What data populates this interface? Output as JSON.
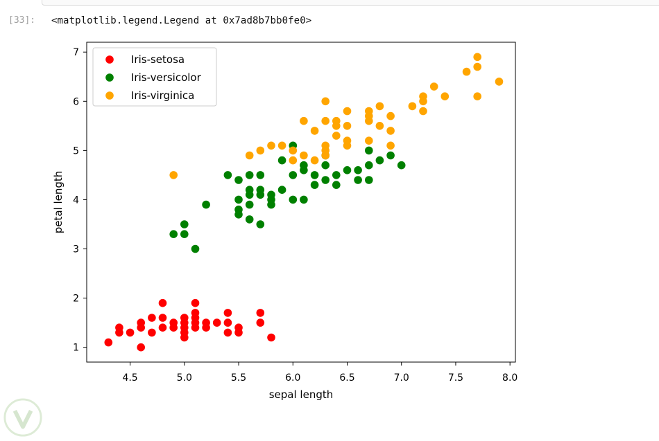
{
  "cell": {
    "prompt": "[33]:",
    "output": "<matplotlib.legend.Legend at 0x7ad8b7bb0fe0>"
  },
  "chart_data": {
    "type": "scatter",
    "xlabel": "sepal length",
    "ylabel": "petal length",
    "xlim": [
      4.1,
      8.05
    ],
    "ylim": [
      0.7,
      7.2
    ],
    "xticks": [
      "4.5",
      "5.0",
      "5.5",
      "6.0",
      "6.5",
      "7.0",
      "7.5",
      "8.0"
    ],
    "yticks": [
      "1",
      "2",
      "3",
      "4",
      "5",
      "6",
      "7"
    ],
    "legend_position": "top-left",
    "series": [
      {
        "name": "Iris-setosa",
        "color": "#ff0000",
        "points": [
          [
            4.3,
            1.1
          ],
          [
            4.4,
            1.3
          ],
          [
            4.4,
            1.4
          ],
          [
            4.5,
            1.3
          ],
          [
            4.6,
            1.0
          ],
          [
            4.6,
            1.4
          ],
          [
            4.6,
            1.5
          ],
          [
            4.7,
            1.3
          ],
          [
            4.7,
            1.6
          ],
          [
            4.8,
            1.4
          ],
          [
            4.8,
            1.6
          ],
          [
            4.8,
            1.9
          ],
          [
            4.9,
            1.4
          ],
          [
            4.9,
            1.5
          ],
          [
            5.0,
            1.2
          ],
          [
            5.0,
            1.3
          ],
          [
            5.0,
            1.4
          ],
          [
            5.0,
            1.5
          ],
          [
            5.0,
            1.6
          ],
          [
            5.1,
            1.4
          ],
          [
            5.1,
            1.5
          ],
          [
            5.1,
            1.6
          ],
          [
            5.1,
            1.7
          ],
          [
            5.1,
            1.9
          ],
          [
            5.2,
            1.4
          ],
          [
            5.2,
            1.5
          ],
          [
            5.3,
            1.5
          ],
          [
            5.4,
            1.3
          ],
          [
            5.4,
            1.5
          ],
          [
            5.4,
            1.7
          ],
          [
            5.5,
            1.3
          ],
          [
            5.5,
            1.4
          ],
          [
            5.7,
            1.5
          ],
          [
            5.7,
            1.7
          ],
          [
            5.8,
            1.2
          ]
        ]
      },
      {
        "name": "Iris-versicolor",
        "color": "#008000",
        "points": [
          [
            4.9,
            3.3
          ],
          [
            5.0,
            3.3
          ],
          [
            5.0,
            3.5
          ],
          [
            5.1,
            3.0
          ],
          [
            5.2,
            3.9
          ],
          [
            5.4,
            4.5
          ],
          [
            5.5,
            3.7
          ],
          [
            5.5,
            3.8
          ],
          [
            5.5,
            4.0
          ],
          [
            5.5,
            4.4
          ],
          [
            5.6,
            3.6
          ],
          [
            5.6,
            3.9
          ],
          [
            5.6,
            4.1
          ],
          [
            5.6,
            4.2
          ],
          [
            5.6,
            4.5
          ],
          [
            5.7,
            3.5
          ],
          [
            5.7,
            4.1
          ],
          [
            5.7,
            4.2
          ],
          [
            5.7,
            4.5
          ],
          [
            5.8,
            3.9
          ],
          [
            5.8,
            4.0
          ],
          [
            5.8,
            4.1
          ],
          [
            5.9,
            4.2
          ],
          [
            5.9,
            4.8
          ],
          [
            6.0,
            4.0
          ],
          [
            6.0,
            4.5
          ],
          [
            6.0,
            5.1
          ],
          [
            6.1,
            4.0
          ],
          [
            6.1,
            4.6
          ],
          [
            6.1,
            4.7
          ],
          [
            6.2,
            4.3
          ],
          [
            6.2,
            4.5
          ],
          [
            6.3,
            4.4
          ],
          [
            6.3,
            4.7
          ],
          [
            6.3,
            4.9
          ],
          [
            6.4,
            4.3
          ],
          [
            6.4,
            4.5
          ],
          [
            6.5,
            4.6
          ],
          [
            6.6,
            4.4
          ],
          [
            6.6,
            4.6
          ],
          [
            6.7,
            4.4
          ],
          [
            6.7,
            4.7
          ],
          [
            6.7,
            5.0
          ],
          [
            6.8,
            4.8
          ],
          [
            6.9,
            4.9
          ],
          [
            7.0,
            4.7
          ]
        ]
      },
      {
        "name": "Iris-virginica",
        "color": "#ffa500",
        "points": [
          [
            4.9,
            4.5
          ],
          [
            5.6,
            4.9
          ],
          [
            5.7,
            5.0
          ],
          [
            5.8,
            5.1
          ],
          [
            5.9,
            5.1
          ],
          [
            6.0,
            4.8
          ],
          [
            6.0,
            5.0
          ],
          [
            6.1,
            4.9
          ],
          [
            6.1,
            5.6
          ],
          [
            6.2,
            4.8
          ],
          [
            6.2,
            5.4
          ],
          [
            6.3,
            4.9
          ],
          [
            6.3,
            5.0
          ],
          [
            6.3,
            5.1
          ],
          [
            6.3,
            5.6
          ],
          [
            6.3,
            6.0
          ],
          [
            6.4,
            5.3
          ],
          [
            6.4,
            5.5
          ],
          [
            6.4,
            5.6
          ],
          [
            6.5,
            5.1
          ],
          [
            6.5,
            5.2
          ],
          [
            6.5,
            5.5
          ],
          [
            6.5,
            5.8
          ],
          [
            6.7,
            5.2
          ],
          [
            6.7,
            5.6
          ],
          [
            6.7,
            5.7
          ],
          [
            6.7,
            5.8
          ],
          [
            6.8,
            5.5
          ],
          [
            6.8,
            5.9
          ],
          [
            6.9,
            5.1
          ],
          [
            6.9,
            5.4
          ],
          [
            6.9,
            5.7
          ],
          [
            7.1,
            5.9
          ],
          [
            7.2,
            5.8
          ],
          [
            7.2,
            6.0
          ],
          [
            7.2,
            6.1
          ],
          [
            7.3,
            6.3
          ],
          [
            7.4,
            6.1
          ],
          [
            7.6,
            6.6
          ],
          [
            7.7,
            6.1
          ],
          [
            7.7,
            6.7
          ],
          [
            7.7,
            6.9
          ],
          [
            7.9,
            6.4
          ]
        ]
      }
    ]
  }
}
